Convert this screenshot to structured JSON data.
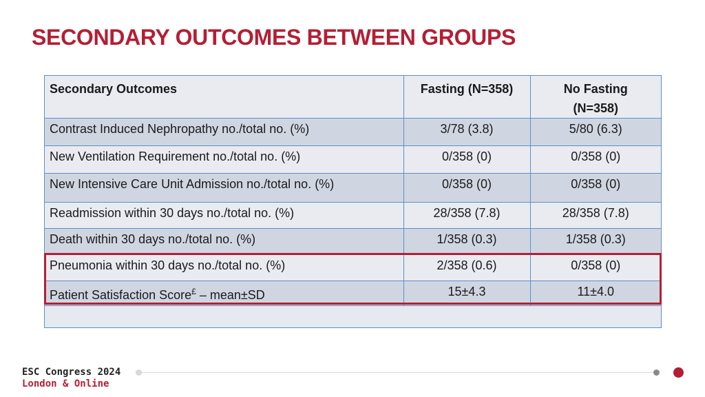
{
  "title": "SECONDARY OUTCOMES BETWEEN GROUPS",
  "table": {
    "headers": [
      "Secondary Outcomes",
      "Fasting (N=358)",
      "No Fasting (N=358)"
    ],
    "header_no_fasting_line1": "No Fasting",
    "header_no_fasting_line2": "(N=358)",
    "rows": [
      {
        "label": "Contrast Induced Nephropathy no./total no. (%)",
        "fasting": "3/78 (3.8)",
        "no_fasting": "5/80 (6.3)"
      },
      {
        "label": "New Ventilation Requirement no./total no. (%)",
        "fasting": "0/358 (0)",
        "no_fasting": "0/358 (0)"
      },
      {
        "label": "New Intensive Care Unit Admission no./total no. (%)",
        "fasting": "0/358 (0)",
        "no_fasting": "0/358 (0)"
      },
      {
        "label": "Readmission within 30 days no./total no. (%)",
        "fasting": "28/358 (7.8)",
        "no_fasting": "28/358 (7.8)"
      },
      {
        "label": "Death within 30 days no./total no. (%)",
        "fasting": "1/358 (0.3)",
        "no_fasting": "1/358 (0.3)"
      },
      {
        "label": "Pneumonia within 30 days no./total no. (%)",
        "fasting": "2/358 (0.6)",
        "no_fasting": "0/358 (0)"
      },
      {
        "label_main": "Patient Satisfaction Score",
        "label_sup": "£",
        "label_suffix": " – mean±SD",
        "fasting": "15±4.3",
        "no_fasting": "11±4.0"
      }
    ]
  },
  "footer": {
    "line1": "ESC Congress 2024",
    "line2_a": "London",
    "line2_amp": " & ",
    "line2_b": "Online"
  },
  "colors": {
    "accent": "#b41e34",
    "table_border": "#5b8fc8",
    "row_light": "#e9ebf1",
    "row_dark": "#d0d6e1"
  }
}
